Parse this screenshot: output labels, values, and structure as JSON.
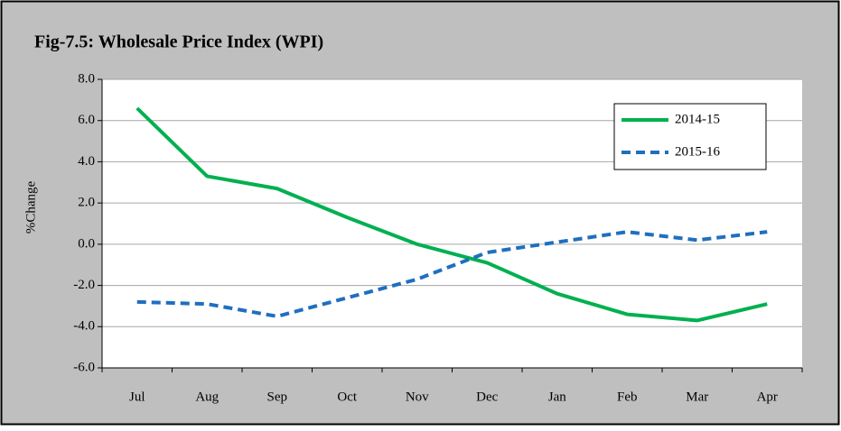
{
  "chart_data": {
    "type": "line",
    "title": "Fig-7.5: Wholesale Price Index (WPI)",
    "y_label": "%Change",
    "categories": [
      "Jul",
      "Aug",
      "Sep",
      "Oct",
      "Nov",
      "Dec",
      "Jan",
      "Feb",
      "Mar",
      "Apr"
    ],
    "series": [
      {
        "name": "2014-15",
        "color": "#00b050",
        "dash": "solid",
        "values": [
          6.6,
          3.3,
          2.7,
          1.3,
          0.0,
          -0.9,
          -2.4,
          -3.4,
          -3.7,
          -2.9
        ]
      },
      {
        "name": "2015-16",
        "color": "#1f6fbf",
        "dash": "dashed",
        "values": [
          -2.8,
          -2.9,
          -3.5,
          -2.6,
          -1.7,
          -0.4,
          0.1,
          0.6,
          0.2,
          0.6
        ]
      }
    ],
    "ylim": [
      -6,
      8
    ],
    "yticks": [
      {
        "value": -6,
        "label": "-6.0"
      },
      {
        "value": -4,
        "label": "-4.0"
      },
      {
        "value": -2,
        "label": "-2.0"
      },
      {
        "value": 0,
        "label": "0.0"
      },
      {
        "value": 2,
        "label": "2.0"
      },
      {
        "value": 4,
        "label": "4.0"
      },
      {
        "value": 6,
        "label": "6.0"
      },
      {
        "value": 8,
        "label": "8.0"
      }
    ],
    "grid": true,
    "legend": "upper right"
  }
}
